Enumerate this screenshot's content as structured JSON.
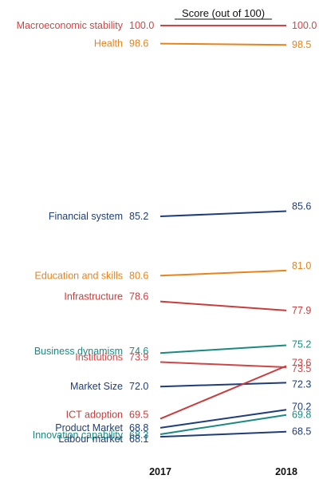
{
  "chart_data": {
    "type": "line",
    "title": "Score (out of 100)",
    "x": [
      "2017",
      "2018"
    ],
    "series": [
      {
        "name": "Macroeconomic stability",
        "values": [
          100.0,
          100.0
        ],
        "color": "#d04545"
      },
      {
        "name": "Health",
        "values": [
          98.6,
          98.5
        ],
        "color": "#e8831c"
      },
      {
        "name": "Financial system",
        "values": [
          85.2,
          85.6
        ],
        "color": "#1f3d7a"
      },
      {
        "name": "Education and skills",
        "values": [
          80.6,
          81.0
        ],
        "color": "#e8831c"
      },
      {
        "name": "Infrastructure",
        "values": [
          78.6,
          77.9
        ],
        "color": "#c93c3c"
      },
      {
        "name": "Business dynamism",
        "values": [
          74.6,
          75.2
        ],
        "color": "#1a8a80"
      },
      {
        "name": "Institutions",
        "values": [
          73.9,
          73.5
        ],
        "color": "#d04545"
      },
      {
        "name": "Market Size",
        "values": [
          72.0,
          72.3
        ],
        "color": "#1f3d7a"
      },
      {
        "name": "ICT adoption",
        "values": [
          69.5,
          73.6
        ],
        "color": "#c93c3c"
      },
      {
        "name": "Product Market",
        "values": [
          68.8,
          70.2
        ],
        "color": "#1f3d7a"
      },
      {
        "name": "Innovation capability",
        "values": [
          68.3,
          69.8
        ],
        "color": "#1a8a80"
      },
      {
        "name": "Labour market",
        "values": [
          68.1,
          68.5
        ],
        "color": "#1f3d7a"
      }
    ],
    "value_labels_2017": [
      "100.0",
      "98.6",
      "85.2",
      "80.6",
      "78.6",
      "74.6",
      "73.9",
      "72.0",
      "69.5",
      "68.8",
      "68.3",
      "68.1"
    ],
    "value_labels_2018": [
      "100.0",
      "98.5",
      "85.6",
      "81.0",
      "77.9",
      "75.2",
      "73.5",
      "72.3",
      "73.6",
      "70.2",
      "69.8",
      "68.5"
    ],
    "ylim": [
      68,
      100
    ],
    "grid": false,
    "legend": "none"
  }
}
